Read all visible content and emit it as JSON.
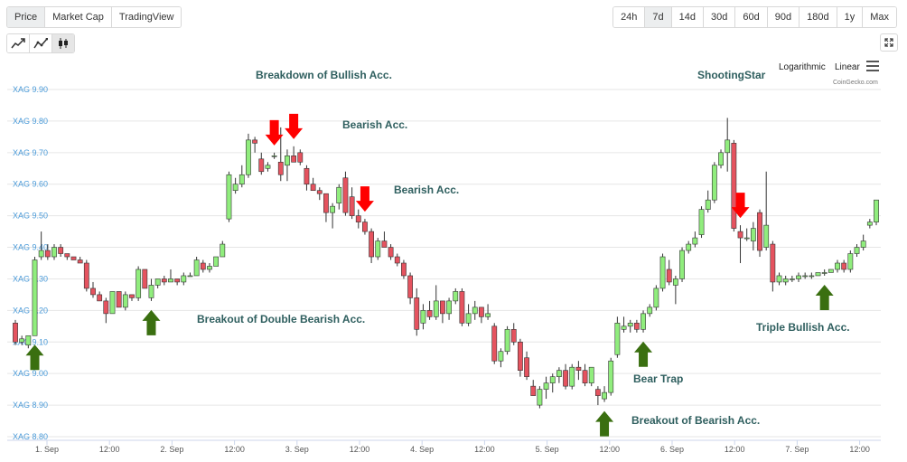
{
  "tabs": [
    "Price",
    "Market Cap",
    "TradingView"
  ],
  "active_tab": "Price",
  "ranges": [
    "24h",
    "7d",
    "14d",
    "30d",
    "60d",
    "90d",
    "180d",
    "1y",
    "Max"
  ],
  "active_range": "7d",
  "chart_type_icons": [
    "line-chart-icon",
    "ohlc-line-icon",
    "candlestick-icon"
  ],
  "scale_options": {
    "log": "Logarithmic",
    "linear": "Linear"
  },
  "credit": "CoinGecko.com",
  "colors": {
    "up": "#90ed7d",
    "down": "#e5535f",
    "arrow_down": "#ff0000",
    "arrow_up": "#3a6f10",
    "annotation": "#2f5f5f",
    "axis_label": "#4a9ad8",
    "grid": "#e6e6e6"
  },
  "chart_data": {
    "type": "candlestick",
    "currency": "XAG",
    "ylim": [
      8.8,
      9.9
    ],
    "y_ticks": [
      "XAG 8.80",
      "XAG 8.90",
      "XAG 9.00",
      "XAG 9.10",
      "XAG 9.20",
      "XAG 9.30",
      "XAG 9.40",
      "XAG 9.50",
      "XAG 9.60",
      "XAG 9.70",
      "XAG 9.80",
      "XAG 9.90"
    ],
    "x_ticks": [
      "1. Sep",
      "12:00",
      "2. Sep",
      "12:00",
      "3. Sep",
      "12:00",
      "4. Sep",
      "12:00",
      "5. Sep",
      "12:00",
      "6. Sep",
      "12:00",
      "7. Sep",
      "12:00"
    ],
    "candles_ohlc": [
      [
        9.16,
        9.17,
        9.09,
        9.1
      ],
      [
        9.1,
        9.12,
        9.09,
        9.11
      ],
      [
        9.09,
        9.12,
        9.08,
        9.12
      ],
      [
        9.12,
        9.37,
        9.12,
        9.36
      ],
      [
        9.37,
        9.45,
        9.36,
        9.39
      ],
      [
        9.39,
        9.41,
        9.36,
        9.37
      ],
      [
        9.37,
        9.41,
        9.36,
        9.4
      ],
      [
        9.4,
        9.41,
        9.37,
        9.38
      ],
      [
        9.38,
        9.38,
        9.36,
        9.37
      ],
      [
        9.37,
        9.37,
        9.36,
        9.36
      ],
      [
        9.36,
        9.37,
        9.35,
        9.35
      ],
      [
        9.35,
        9.36,
        9.26,
        9.27
      ],
      [
        9.27,
        9.29,
        9.24,
        9.25
      ],
      [
        9.25,
        9.26,
        9.23,
        9.23
      ],
      [
        9.23,
        9.24,
        9.16,
        9.19
      ],
      [
        9.19,
        9.26,
        9.19,
        9.26
      ],
      [
        9.26,
        9.26,
        9.21,
        9.21
      ],
      [
        9.21,
        9.26,
        9.2,
        9.25
      ],
      [
        9.25,
        9.25,
        9.23,
        9.24
      ],
      [
        9.24,
        9.34,
        9.23,
        9.33
      ],
      [
        9.33,
        9.33,
        9.27,
        9.27
      ],
      [
        9.24,
        9.3,
        9.23,
        9.28
      ],
      [
        9.28,
        9.3,
        9.27,
        9.3
      ],
      [
        9.3,
        9.31,
        9.28,
        9.29
      ],
      [
        9.29,
        9.33,
        9.29,
        9.3
      ],
      [
        9.3,
        9.3,
        9.28,
        9.29
      ],
      [
        9.29,
        9.32,
        9.28,
        9.31
      ],
      [
        9.31,
        9.32,
        9.31,
        9.31
      ],
      [
        9.31,
        9.37,
        9.31,
        9.36
      ],
      [
        9.35,
        9.36,
        9.32,
        9.33
      ],
      [
        9.33,
        9.35,
        9.32,
        9.34
      ],
      [
        9.34,
        9.37,
        9.34,
        9.37
      ],
      [
        9.37,
        9.42,
        9.37,
        9.41
      ],
      [
        9.49,
        9.64,
        9.48,
        9.63
      ],
      [
        9.58,
        9.62,
        9.57,
        9.6
      ],
      [
        9.6,
        9.66,
        9.59,
        9.63
      ],
      [
        9.63,
        9.76,
        9.62,
        9.74
      ],
      [
        9.74,
        9.75,
        9.7,
        9.73
      ],
      [
        9.68,
        9.7,
        9.63,
        9.64
      ],
      [
        9.65,
        9.67,
        9.64,
        9.66
      ],
      [
        9.69,
        9.7,
        9.68,
        9.69
      ],
      [
        9.67,
        9.78,
        9.61,
        9.63
      ],
      [
        9.66,
        9.71,
        9.61,
        9.69
      ],
      [
        9.69,
        9.72,
        9.67,
        9.67
      ],
      [
        9.7,
        9.71,
        9.66,
        9.67
      ],
      [
        9.65,
        9.66,
        9.58,
        9.6
      ],
      [
        9.6,
        9.62,
        9.58,
        9.58
      ],
      [
        9.58,
        9.59,
        9.55,
        9.57
      ],
      [
        9.57,
        9.57,
        9.48,
        9.51
      ],
      [
        9.51,
        9.54,
        9.46,
        9.53
      ],
      [
        9.54,
        9.6,
        9.52,
        9.59
      ],
      [
        9.62,
        9.64,
        9.5,
        9.51
      ],
      [
        9.56,
        9.59,
        9.49,
        9.5
      ],
      [
        9.5,
        9.52,
        9.46,
        9.48
      ],
      [
        9.48,
        9.49,
        9.44,
        9.45
      ],
      [
        9.45,
        9.46,
        9.35,
        9.37
      ],
      [
        9.37,
        9.43,
        9.36,
        9.42
      ],
      [
        9.42,
        9.45,
        9.4,
        9.4
      ],
      [
        9.4,
        9.41,
        9.36,
        9.37
      ],
      [
        9.37,
        9.38,
        9.34,
        9.35
      ],
      [
        9.35,
        9.36,
        9.3,
        9.31
      ],
      [
        9.31,
        9.32,
        9.22,
        9.24
      ],
      [
        9.24,
        9.27,
        9.12,
        9.14
      ],
      [
        9.16,
        9.22,
        9.14,
        9.2
      ],
      [
        9.2,
        9.23,
        9.17,
        9.18
      ],
      [
        9.18,
        9.28,
        9.17,
        9.23
      ],
      [
        9.23,
        9.23,
        9.16,
        9.19
      ],
      [
        9.19,
        9.24,
        9.17,
        9.23
      ],
      [
        9.23,
        9.27,
        9.22,
        9.26
      ],
      [
        9.26,
        9.27,
        9.15,
        9.16
      ],
      [
        9.16,
        9.22,
        9.15,
        9.19
      ],
      [
        9.19,
        9.23,
        9.17,
        9.21
      ],
      [
        9.21,
        9.21,
        9.16,
        9.18
      ],
      [
        9.18,
        9.22,
        9.17,
        9.19
      ],
      [
        9.15,
        9.16,
        9.03,
        9.04
      ],
      [
        9.04,
        9.08,
        9.02,
        9.07
      ],
      [
        9.07,
        9.15,
        9.06,
        9.14
      ],
      [
        9.14,
        9.16,
        9.09,
        9.1
      ],
      [
        9.1,
        9.11,
        8.99,
        9.01
      ],
      [
        9.05,
        9.07,
        8.98,
        8.99
      ],
      [
        8.96,
        8.98,
        8.93,
        8.93
      ],
      [
        8.9,
        8.96,
        8.89,
        8.95
      ],
      [
        8.95,
        8.99,
        8.92,
        8.97
      ],
      [
        8.97,
        9.0,
        8.94,
        8.99
      ],
      [
        8.99,
        9.02,
        8.97,
        9.01
      ],
      [
        9.01,
        9.03,
        8.95,
        8.96
      ],
      [
        8.96,
        9.03,
        8.95,
        9.02
      ],
      [
        9.02,
        9.04,
        8.98,
        9.01
      ],
      [
        9.01,
        9.03,
        8.96,
        8.97
      ],
      [
        8.97,
        9.02,
        8.96,
        9.02
      ],
      [
        8.95,
        8.96,
        8.9,
        8.93
      ],
      [
        8.92,
        8.96,
        8.91,
        8.94
      ],
      [
        8.94,
        9.05,
        8.93,
        9.04
      ],
      [
        9.06,
        9.18,
        9.05,
        9.16
      ],
      [
        9.14,
        9.18,
        9.13,
        9.15
      ],
      [
        9.15,
        9.17,
        9.13,
        9.16
      ],
      [
        9.16,
        9.17,
        9.13,
        9.14
      ],
      [
        9.14,
        9.2,
        9.13,
        9.19
      ],
      [
        9.19,
        9.22,
        9.18,
        9.21
      ],
      [
        9.21,
        9.28,
        9.2,
        9.27
      ],
      [
        9.27,
        9.38,
        9.26,
        9.37
      ],
      [
        9.33,
        9.36,
        9.28,
        9.29
      ],
      [
        9.28,
        9.31,
        9.22,
        9.3
      ],
      [
        9.3,
        9.4,
        9.29,
        9.39
      ],
      [
        9.39,
        9.42,
        9.38,
        9.41
      ],
      [
        9.41,
        9.45,
        9.4,
        9.43
      ],
      [
        9.44,
        9.53,
        9.43,
        9.52
      ],
      [
        9.52,
        9.58,
        9.51,
        9.55
      ],
      [
        9.55,
        9.67,
        9.54,
        9.66
      ],
      [
        9.66,
        9.71,
        9.65,
        9.7
      ],
      [
        9.7,
        9.81,
        9.64,
        9.74
      ],
      [
        9.73,
        9.74,
        9.45,
        9.46
      ],
      [
        9.45,
        9.47,
        9.35,
        9.43
      ],
      [
        9.43,
        9.46,
        9.42,
        9.43
      ],
      [
        9.42,
        9.48,
        9.39,
        9.46
      ],
      [
        9.51,
        9.52,
        9.37,
        9.39
      ],
      [
        9.4,
        9.64,
        9.39,
        9.47
      ],
      [
        9.41,
        9.42,
        9.26,
        9.29
      ],
      [
        9.29,
        9.32,
        9.28,
        9.31
      ],
      [
        9.29,
        9.31,
        9.28,
        9.3
      ],
      [
        9.3,
        9.31,
        9.29,
        9.3
      ],
      [
        9.3,
        9.32,
        9.29,
        9.31
      ],
      [
        9.31,
        9.32,
        9.3,
        9.31
      ],
      [
        9.31,
        9.32,
        9.3,
        9.31
      ],
      [
        9.31,
        9.32,
        9.31,
        9.32
      ],
      [
        9.32,
        9.33,
        9.31,
        9.32
      ],
      [
        9.32,
        9.33,
        9.32,
        9.33
      ],
      [
        9.33,
        9.36,
        9.32,
        9.35
      ],
      [
        9.35,
        9.36,
        9.32,
        9.33
      ],
      [
        9.33,
        9.39,
        9.32,
        9.38
      ],
      [
        9.38,
        9.41,
        9.37,
        9.4
      ],
      [
        9.4,
        9.44,
        9.39,
        9.42
      ],
      [
        9.47,
        9.49,
        9.46,
        9.48
      ],
      [
        9.48,
        9.55,
        9.47,
        9.55
      ]
    ],
    "annotations": [
      {
        "text": "Breakdown of Bullish Acc.",
        "candle": 40,
        "arrow": "down"
      },
      {
        "text": "Bearish Acc.",
        "candle": 43,
        "arrow": "down"
      },
      {
        "text": "Bearish Acc.",
        "candle": 54,
        "arrow": "down"
      },
      {
        "text": "ShootingStar",
        "candle": 112,
        "arrow": "down"
      },
      {
        "text": "Breakout of Double Bearish Acc.",
        "candle": 21,
        "arrow": "up"
      },
      {
        "text": "Bear Trap",
        "candle": 97,
        "arrow": "up"
      },
      {
        "text": "Breakout of Bearish Acc.",
        "candle": 91,
        "arrow": "up"
      },
      {
        "text": "Triple Bullish Acc.",
        "candle": 125,
        "arrow": "up"
      },
      {
        "text": "",
        "candle": 3,
        "arrow": "up"
      }
    ]
  }
}
